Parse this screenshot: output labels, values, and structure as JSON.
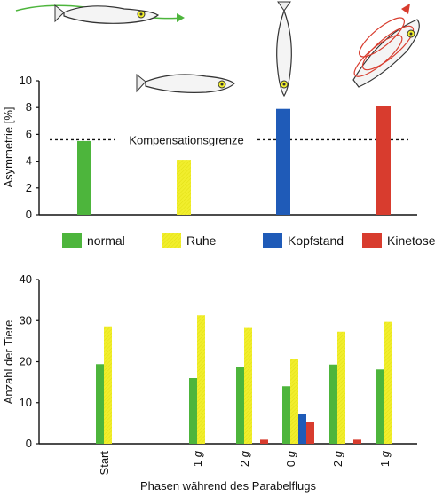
{
  "chart_data": [
    {
      "type": "bar",
      "ylabel": "Asymmetrie [%]",
      "ylim": [
        0,
        10
      ],
      "yticks": [
        0,
        2,
        4,
        6,
        8,
        10
      ],
      "series": [
        {
          "name": "normal",
          "value": 5.5,
          "color": "#4db53c"
        },
        {
          "name": "Ruhe",
          "value": 4.1,
          "color": "#f1ee2d"
        },
        {
          "name": "Kopfstand",
          "value": 7.9,
          "color": "#1f5bb8"
        },
        {
          "name": "Kinetose",
          "value": 8.1,
          "color": "#d83c2e"
        }
      ],
      "reference_line": {
        "label": "Kompensationsgrenze",
        "value": 5.6
      },
      "legend": [
        "normal",
        "Ruhe",
        "Kopfstand",
        "Kinetose"
      ],
      "illustrations": [
        "fish-swimming-icon",
        "fish-resting-icon",
        "fish-headstand-icon",
        "fish-spinning-icon"
      ]
    },
    {
      "type": "bar",
      "xlabel": "Phasen während des Parabelflugs",
      "ylabel": "Anzahl der Tiere",
      "ylim": [
        0,
        40
      ],
      "yticks": [
        0,
        10,
        20,
        30,
        40
      ],
      "categories": [
        {
          "label": "Start",
          "italic_g": false
        },
        {
          "label": "1 g",
          "italic_g": true
        },
        {
          "label": "2 g",
          "italic_g": true
        },
        {
          "label": "0 g",
          "italic_g": true
        },
        {
          "label": "2 g",
          "italic_g": true
        },
        {
          "label": "1 g",
          "italic_g": true
        }
      ],
      "series": [
        {
          "name": "normal",
          "color": "#4db53c",
          "values": [
            19.4,
            16.0,
            18.8,
            14.0,
            19.3,
            18.1
          ]
        },
        {
          "name": "Ruhe",
          "color": "#f1ee2d",
          "values": [
            28.6,
            31.3,
            28.2,
            20.7,
            27.3,
            29.7
          ]
        },
        {
          "name": "Kopfstand",
          "color": "#1f5bb8",
          "values": [
            0,
            0,
            0,
            7.2,
            0,
            0
          ]
        },
        {
          "name": "Kinetose",
          "color": "#d83c2e",
          "values": [
            0,
            0,
            1.0,
            5.4,
            1.0,
            0
          ]
        }
      ]
    }
  ]
}
